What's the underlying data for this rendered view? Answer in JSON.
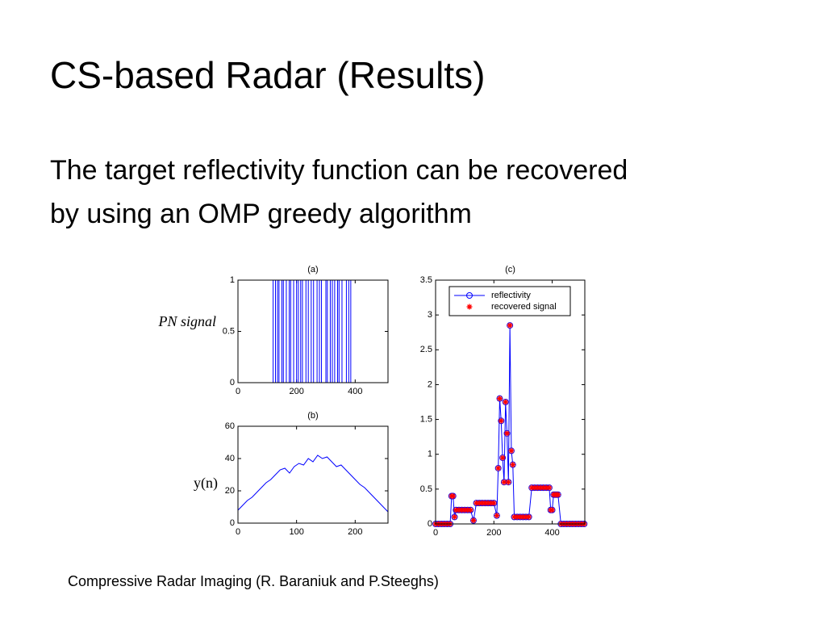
{
  "title": "CS-based Radar (Results)",
  "body": [
    "The target reflectivity function can be recovered",
    "by using an OMP greedy algorithm"
  ],
  "caption": "Compressive Radar Imaging (R. Baraniuk and P.Steeghs)",
  "chart_data": [
    {
      "type": "line",
      "title": "(a)",
      "annotation": "PN signal",
      "color": "#0000ff",
      "x": [
        0,
        120,
        120,
        128,
        128,
        135,
        135,
        140,
        140,
        150,
        150,
        155,
        155,
        165,
        165,
        175,
        175,
        180,
        180,
        190,
        190,
        200,
        200,
        206,
        206,
        214,
        214,
        220,
        220,
        232,
        232,
        240,
        240,
        250,
        250,
        258,
        258,
        270,
        270,
        278,
        278,
        285,
        285,
        300,
        300,
        305,
        305,
        315,
        315,
        322,
        322,
        330,
        330,
        340,
        340,
        345,
        345,
        355,
        355,
        370,
        370,
        378,
        378,
        385,
        385,
        512
      ],
      "values": [
        0,
        0,
        1,
        1,
        0,
        0,
        1,
        1,
        0,
        0,
        1,
        1,
        0,
        0,
        1,
        1,
        0,
        0,
        1,
        1,
        0,
        0,
        1,
        1,
        0,
        0,
        1,
        1,
        0,
        0,
        1,
        1,
        0,
        0,
        1,
        1,
        0,
        0,
        1,
        1,
        0,
        0,
        1,
        1,
        0,
        0,
        1,
        1,
        0,
        0,
        1,
        1,
        0,
        0,
        1,
        1,
        0,
        0,
        1,
        1,
        0,
        0,
        1,
        1,
        0,
        0
      ],
      "xlim": [
        0,
        512
      ],
      "xticks": [
        0,
        200,
        400
      ],
      "ylim": [
        0,
        1
      ],
      "yticks": [
        0,
        0.5,
        1
      ]
    },
    {
      "type": "line",
      "title": "(b)",
      "annotation": "y(n)",
      "color": "#0000ff",
      "x": [
        0,
        8,
        16,
        24,
        32,
        40,
        48,
        56,
        64,
        72,
        80,
        88,
        96,
        104,
        112,
        120,
        128,
        136,
        144,
        152,
        160,
        168,
        176,
        184,
        192,
        200,
        208,
        216,
        224,
        232,
        240,
        248,
        256
      ],
      "values": [
        8,
        11,
        14,
        16,
        19,
        22,
        25,
        27,
        30,
        33,
        34,
        31,
        35,
        37,
        36,
        40,
        38,
        42,
        40,
        41,
        38,
        35,
        36,
        33,
        30,
        27,
        24,
        22,
        19,
        16,
        13,
        10,
        7
      ],
      "xlim": [
        0,
        256
      ],
      "xticks": [
        0,
        100,
        200
      ],
      "ylim": [
        0,
        60
      ],
      "yticks": [
        0,
        20,
        40,
        60
      ]
    },
    {
      "type": "line",
      "title": "(c)",
      "legend": "northeast",
      "x": [
        0,
        10,
        20,
        30,
        40,
        50,
        55,
        60,
        65,
        70,
        80,
        90,
        100,
        110,
        120,
        130,
        140,
        150,
        160,
        170,
        180,
        190,
        200,
        210,
        215,
        220,
        225,
        230,
        235,
        240,
        245,
        250,
        255,
        260,
        265,
        270,
        280,
        290,
        300,
        310,
        320,
        330,
        340,
        350,
        360,
        370,
        380,
        390,
        395,
        400,
        405,
        410,
        415,
        420,
        430,
        440,
        450,
        460,
        470,
        480,
        490,
        500,
        510
      ],
      "series": [
        {
          "name": "reflectivity",
          "color": "#0000ff",
          "marker": "o",
          "line": true,
          "values": [
            0,
            0,
            0,
            0,
            0,
            0,
            0.4,
            0.4,
            0.1,
            0.2,
            0.2,
            0.2,
            0.2,
            0.2,
            0.2,
            0.05,
            0.3,
            0.3,
            0.3,
            0.3,
            0.3,
            0.3,
            0.3,
            0.12,
            0.8,
            1.8,
            1.48,
            0.95,
            0.6,
            1.75,
            1.3,
            0.6,
            2.85,
            1.05,
            0.85,
            0.1,
            0.1,
            0.1,
            0.1,
            0.1,
            0.1,
            0.52,
            0.52,
            0.52,
            0.52,
            0.52,
            0.52,
            0.52,
            0.2,
            0.2,
            0.42,
            0.42,
            0.42,
            0.42,
            0,
            0,
            0,
            0,
            0,
            0,
            0,
            0,
            0
          ]
        },
        {
          "name": "recovered signal",
          "color": "#ff0000",
          "marker": "*",
          "line": false,
          "values": [
            0,
            0,
            0,
            0,
            0,
            0,
            0.4,
            0.4,
            0.1,
            0.2,
            0.2,
            0.2,
            0.2,
            0.2,
            0.2,
            0.05,
            0.3,
            0.3,
            0.3,
            0.3,
            0.3,
            0.3,
            0.3,
            0.12,
            0.8,
            1.8,
            1.48,
            0.95,
            0.6,
            1.75,
            1.3,
            0.6,
            2.85,
            1.05,
            0.85,
            0.1,
            0.1,
            0.1,
            0.1,
            0.1,
            0.1,
            0.52,
            0.52,
            0.52,
            0.52,
            0.52,
            0.52,
            0.52,
            0.2,
            0.2,
            0.42,
            0.42,
            0.42,
            0.42,
            0,
            0,
            0,
            0,
            0,
            0,
            0,
            0,
            0
          ]
        }
      ],
      "xlim": [
        0,
        512
      ],
      "xticks": [
        0,
        200,
        400
      ],
      "ylim": [
        0,
        3.5
      ],
      "yticks": [
        0,
        0.5,
        1,
        1.5,
        2,
        2.5,
        3,
        3.5
      ]
    }
  ]
}
